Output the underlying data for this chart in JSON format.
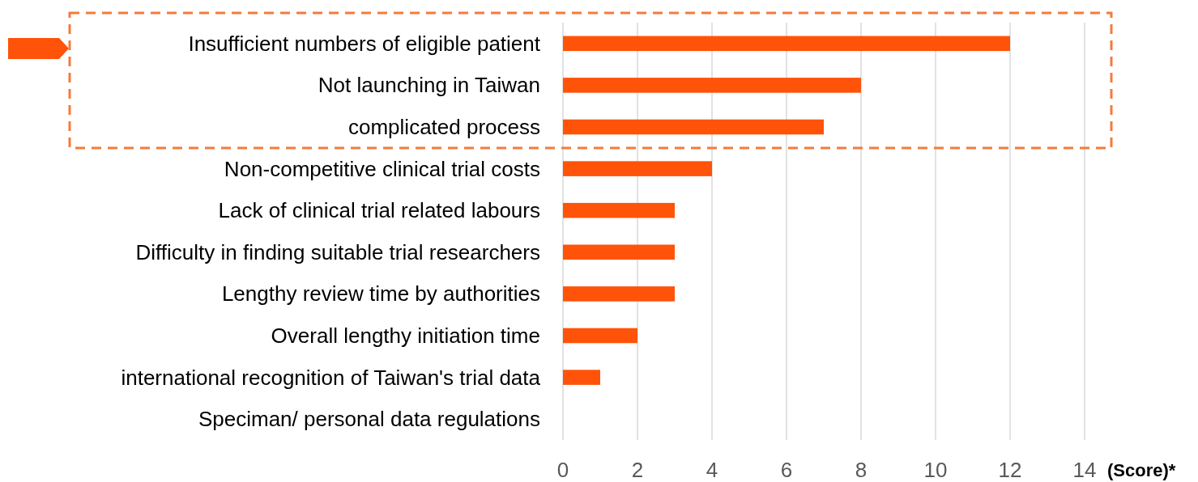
{
  "chart_data": {
    "type": "bar",
    "orientation": "horizontal",
    "categories": [
      "Insufficient numbers of eligible patient",
      "Not launching in Taiwan",
      "complicated process",
      "Non-competitive clinical trial costs",
      "Lack of clinical trial related labours",
      "Difficulty in finding suitable trial researchers",
      "Lengthy review time by authorities",
      "Overall lengthy initiation time",
      "international recognition of Taiwan's trial data",
      "Speciman/ personal data regulations"
    ],
    "values": [
      12,
      8,
      7,
      4,
      3,
      3,
      3,
      2,
      1,
      0
    ],
    "color": "#ff5309",
    "xlabel": "(Score)*",
    "xlim": [
      0,
      14
    ],
    "xticks": [
      0,
      2,
      4,
      6,
      8,
      10,
      12,
      14
    ],
    "grid": "x"
  }
}
